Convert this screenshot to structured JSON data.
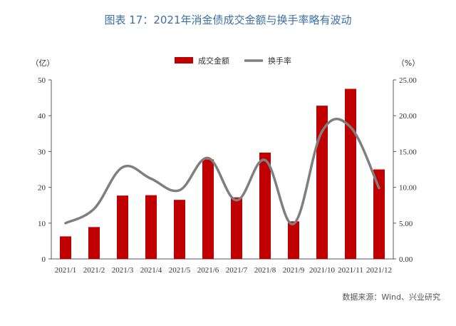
{
  "chart_data": {
    "type": "bar",
    "title": "图表 17：2021年消金债成交金额与换手率略有波动",
    "categories": [
      "2021/1",
      "2021/2",
      "2021/3",
      "2021/4",
      "2021/5",
      "2021/6",
      "2021/7",
      "2021/8",
      "2021/9",
      "2021/10",
      "2021/11",
      "2021/12"
    ],
    "series": [
      {
        "name": "成交金额",
        "type": "bar",
        "axis": "left",
        "color": "#c00000",
        "values": [
          6.3,
          8.9,
          17.7,
          17.8,
          16.5,
          27.8,
          17.2,
          29.7,
          10.5,
          42.8,
          47.5,
          25.0
        ]
      },
      {
        "name": "换手率",
        "type": "line",
        "axis": "right",
        "color": "#7f7f7f",
        "values": [
          5.0,
          7.0,
          12.8,
          11.2,
          9.6,
          14.1,
          8.2,
          13.8,
          4.9,
          17.8,
          18.4,
          9.9
        ]
      }
    ],
    "left_axis": {
      "unit": "（亿）",
      "ylim": [
        0,
        50
      ],
      "ticks": [
        "0",
        "10",
        "20",
        "30",
        "40",
        "50"
      ]
    },
    "right_axis": {
      "unit": "（%）",
      "ylim": [
        0,
        25
      ],
      "ticks": [
        "0.00",
        "5.00",
        "10.00",
        "15.00",
        "20.00",
        "25.00"
      ]
    },
    "legend_placement": "top-center",
    "grid": false,
    "source": "数据来源：Wind、兴业研究"
  }
}
